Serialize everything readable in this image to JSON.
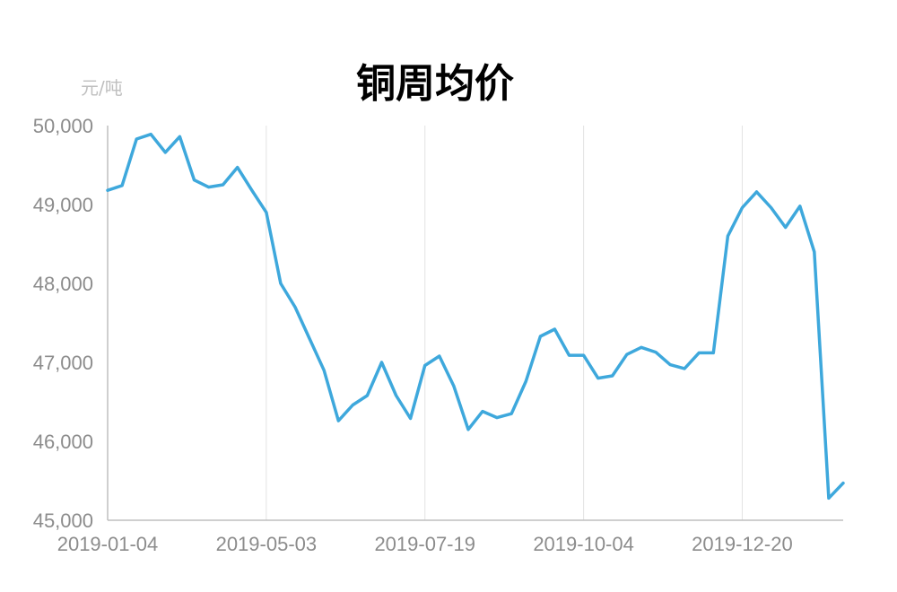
{
  "chart_data": {
    "type": "line",
    "title": "铜周均价",
    "unit_label": "元/吨",
    "xlabel": "",
    "ylabel": "",
    "ylim": [
      45000,
      50000
    ],
    "y_ticks": [
      "45,000",
      "46,000",
      "47,000",
      "48,000",
      "49,000",
      "50,000"
    ],
    "x_tick_labels": [
      "2019-01-04",
      "2019-05-03",
      "2019-07-19",
      "2019-10-04",
      "2019-12-20"
    ],
    "x_tick_indices": [
      0,
      11,
      22,
      33,
      44
    ],
    "grid": "vertical",
    "line_color": "#3ea8dc",
    "series": [
      {
        "values": [
          49180,
          49240,
          49830,
          49890,
          49660,
          49860,
          49310,
          49220,
          49250,
          49470,
          49180,
          48900,
          48000,
          47700,
          47300,
          46900,
          46260,
          46460,
          46580,
          47000,
          46580,
          46290,
          46960,
          47080,
          46700,
          46150,
          46380,
          46300,
          46350,
          46760,
          47330,
          47420,
          47090,
          47090,
          46800,
          46830,
          47100,
          47190,
          47130,
          46970,
          46920,
          47120,
          47120,
          48600,
          48960,
          49160,
          48960,
          48710,
          48980,
          48400,
          45280,
          45470
        ]
      }
    ]
  }
}
